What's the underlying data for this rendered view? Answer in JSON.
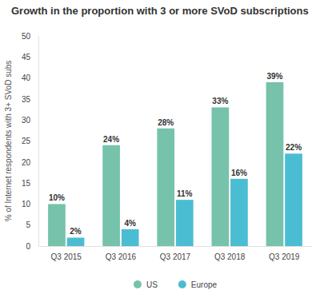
{
  "chart_data": {
    "type": "bar",
    "title": "Growth in the proportion with 3 or more SVoD subscriptions",
    "y_label": "% of Internet respondents with 3+ SVoD subs",
    "categories": [
      "Q3 2015",
      "Q3 2016",
      "Q3 2017",
      "Q3 2018",
      "Q3 2019"
    ],
    "series": [
      {
        "name": "US",
        "color": "#76c2ab",
        "values": [
          10,
          24,
          28,
          33,
          39
        ],
        "value_labels": [
          "10%",
          "24%",
          "28%",
          "33%",
          "39%"
        ]
      },
      {
        "name": "Europe",
        "color": "#4bbdd3",
        "values": [
          2,
          4,
          11,
          16,
          22
        ],
        "value_labels": [
          "2%",
          "4%",
          "11%",
          "16%",
          "22%"
        ]
      }
    ],
    "ylim": [
      0,
      50
    ],
    "yticks": [
      0,
      5,
      10,
      15,
      20,
      25,
      30,
      35,
      40,
      45,
      50
    ],
    "grid": false,
    "legend": "bottom",
    "data_labels": true
  }
}
